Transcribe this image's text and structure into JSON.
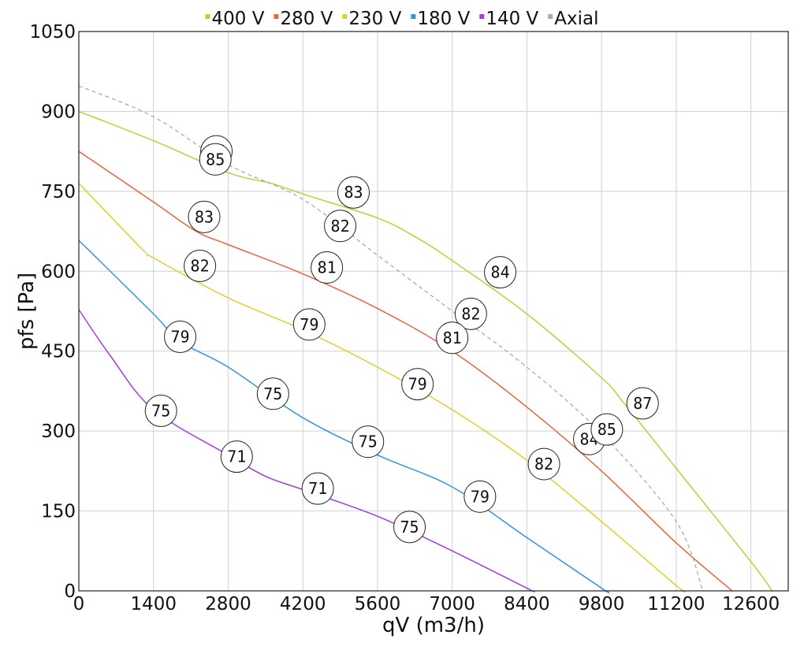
{
  "chart_data": {
    "type": "line",
    "xlabel": "qV (m3/h)",
    "ylabel": "pfs [Pa]",
    "xlim": [
      0,
      13300
    ],
    "ylim": [
      0,
      1050
    ],
    "x_ticks": [
      0,
      1400,
      2800,
      4200,
      5600,
      7000,
      8400,
      9800,
      11200,
      12600
    ],
    "y_ticks": [
      0,
      150,
      300,
      450,
      600,
      750,
      900,
      1050
    ],
    "grid": true,
    "legend_position": "top",
    "series": [
      {
        "name": "400 V",
        "color": "#b5d334",
        "dashed": false,
        "points": [
          [
            0,
            900
          ],
          [
            1400,
            845
          ],
          [
            2800,
            785
          ],
          [
            3600,
            765
          ],
          [
            4200,
            745
          ],
          [
            5600,
            700
          ],
          [
            6300,
            665
          ],
          [
            7000,
            620
          ],
          [
            8400,
            520
          ],
          [
            9800,
            400
          ],
          [
            10200,
            355
          ],
          [
            11200,
            230
          ],
          [
            12600,
            55
          ],
          [
            13000,
            0
          ]
        ]
      },
      {
        "name": "280 V",
        "color": "#e8643c",
        "dashed": false,
        "points": [
          [
            0,
            825
          ],
          [
            1400,
            730
          ],
          [
            2200,
            675
          ],
          [
            2800,
            650
          ],
          [
            4200,
            595
          ],
          [
            5600,
            530
          ],
          [
            7000,
            450
          ],
          [
            8400,
            345
          ],
          [
            9800,
            225
          ],
          [
            11200,
            90
          ],
          [
            12250,
            0
          ]
        ]
      },
      {
        "name": "230 V",
        "color": "#e0cf26",
        "dashed": false,
        "points": [
          [
            0,
            765
          ],
          [
            1200,
            640
          ],
          [
            1400,
            625
          ],
          [
            2800,
            550
          ],
          [
            4200,
            490
          ],
          [
            5600,
            420
          ],
          [
            7000,
            340
          ],
          [
            8400,
            245
          ],
          [
            9800,
            130
          ],
          [
            11200,
            10
          ],
          [
            11350,
            0
          ]
        ]
      },
      {
        "name": "180 V",
        "color": "#2f97de",
        "dashed": false,
        "points": [
          [
            0,
            658
          ],
          [
            1400,
            520
          ],
          [
            1900,
            468
          ],
          [
            2800,
            420
          ],
          [
            4200,
            325
          ],
          [
            5600,
            255
          ],
          [
            7000,
            195
          ],
          [
            8400,
            100
          ],
          [
            9800,
            5
          ],
          [
            9900,
            0
          ]
        ]
      },
      {
        "name": "140 V",
        "color": "#a53be0",
        "dashed": false,
        "points": [
          [
            0,
            528
          ],
          [
            600,
            440
          ],
          [
            1400,
            340
          ],
          [
            2800,
            255
          ],
          [
            3500,
            215
          ],
          [
            4200,
            190
          ],
          [
            5600,
            140
          ],
          [
            7000,
            75
          ],
          [
            8400,
            5
          ],
          [
            8500,
            0
          ]
        ]
      },
      {
        "name": "Axial",
        "color": "#aaaaaa",
        "dashed": true,
        "points": [
          [
            0,
            948
          ],
          [
            1400,
            890
          ],
          [
            2800,
            800
          ],
          [
            4200,
            735
          ],
          [
            5600,
            630
          ],
          [
            7000,
            525
          ],
          [
            8400,
            420
          ],
          [
            9800,
            295
          ],
          [
            11200,
            130
          ],
          [
            11700,
            0
          ]
        ]
      }
    ],
    "annotations": [
      {
        "text": "85",
        "x": 2580,
        "y": 825
      },
      {
        "text": "85",
        "x": 2560,
        "y": 810
      },
      {
        "text": "83",
        "x": 5150,
        "y": 748
      },
      {
        "text": "83",
        "x": 2350,
        "y": 702
      },
      {
        "text": "82",
        "x": 4900,
        "y": 685
      },
      {
        "text": "84",
        "x": 7900,
        "y": 598
      },
      {
        "text": "82",
        "x": 2270,
        "y": 610
      },
      {
        "text": "81",
        "x": 4650,
        "y": 607
      },
      {
        "text": "82",
        "x": 7350,
        "y": 520
      },
      {
        "text": "79",
        "x": 4320,
        "y": 500
      },
      {
        "text": "81",
        "x": 7000,
        "y": 475
      },
      {
        "text": "79",
        "x": 1900,
        "y": 477
      },
      {
        "text": "79",
        "x": 6350,
        "y": 388
      },
      {
        "text": "87",
        "x": 10570,
        "y": 352
      },
      {
        "text": "75",
        "x": 3640,
        "y": 370
      },
      {
        "text": "84",
        "x": 9570,
        "y": 285
      },
      {
        "text": "85",
        "x": 9900,
        "y": 303
      },
      {
        "text": "75",
        "x": 1540,
        "y": 338
      },
      {
        "text": "75",
        "x": 5420,
        "y": 280
      },
      {
        "text": "82",
        "x": 8720,
        "y": 238
      },
      {
        "text": "71",
        "x": 2960,
        "y": 252
      },
      {
        "text": "79",
        "x": 7520,
        "y": 177
      },
      {
        "text": "71",
        "x": 4480,
        "y": 192
      },
      {
        "text": "75",
        "x": 6200,
        "y": 120
      }
    ]
  }
}
